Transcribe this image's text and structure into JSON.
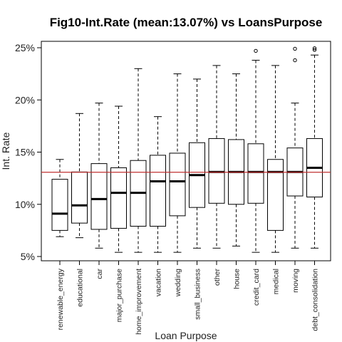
{
  "chart_data": {
    "type": "box",
    "title": "Fig10-Int.Rate (mean:13.07%) vs LoansPurpose",
    "xlabel": "Loan Purpose",
    "ylabel": "Int. Rate",
    "ylim": [
      5,
      25
    ],
    "y_ticks": [
      5,
      10,
      15,
      20,
      25
    ],
    "y_tick_labels": [
      "5%",
      "10%",
      "15%",
      "20%",
      "25%"
    ],
    "reference_line": {
      "value": 13.07,
      "color": "#c03030"
    },
    "categories": [
      "renewable_energy",
      "educational",
      "car",
      "major_purchase",
      "home_improvement",
      "vacation",
      "wedding",
      "small_business",
      "other",
      "house",
      "credit_card",
      "medical",
      "moving",
      "debt_consolidation"
    ],
    "boxes": [
      {
        "min": 6.9,
        "q1": 7.5,
        "median": 9.1,
        "q3": 12.4,
        "max": 14.3,
        "outliers": []
      },
      {
        "min": 6.8,
        "q1": 8.2,
        "median": 9.9,
        "q3": 13.1,
        "max": 18.7,
        "outliers": []
      },
      {
        "min": 5.8,
        "q1": 7.6,
        "median": 10.5,
        "q3": 13.9,
        "max": 19.7,
        "outliers": []
      },
      {
        "min": 5.4,
        "q1": 7.7,
        "median": 11.1,
        "q3": 13.5,
        "max": 19.4,
        "outliers": []
      },
      {
        "min": 5.4,
        "q1": 7.9,
        "median": 11.1,
        "q3": 14.2,
        "max": 23.0,
        "outliers": []
      },
      {
        "min": 5.4,
        "q1": 7.9,
        "median": 12.2,
        "q3": 14.7,
        "max": 18.4,
        "outliers": []
      },
      {
        "min": 5.4,
        "q1": 8.9,
        "median": 12.2,
        "q3": 14.9,
        "max": 22.5,
        "outliers": []
      },
      {
        "min": 5.8,
        "q1": 9.7,
        "median": 12.8,
        "q3": 15.9,
        "max": 22.0,
        "outliers": []
      },
      {
        "min": 5.8,
        "q1": 10.1,
        "median": 13.1,
        "q3": 16.3,
        "max": 23.3,
        "outliers": []
      },
      {
        "min": 6.0,
        "q1": 10.0,
        "median": 13.1,
        "q3": 16.2,
        "max": 22.5,
        "outliers": []
      },
      {
        "min": 5.4,
        "q1": 10.1,
        "median": 13.1,
        "q3": 15.8,
        "max": 23.8,
        "outliers": [
          24.7
        ]
      },
      {
        "min": 5.4,
        "q1": 7.5,
        "median": 13.1,
        "q3": 14.3,
        "max": 23.3,
        "outliers": []
      },
      {
        "min": 5.8,
        "q1": 10.8,
        "median": 13.1,
        "q3": 15.4,
        "max": 19.7,
        "outliers": [
          23.8,
          24.9
        ]
      },
      {
        "min": 5.8,
        "q1": 10.7,
        "median": 13.5,
        "q3": 16.3,
        "max": 24.3,
        "outliers": [
          24.8,
          24.95
        ]
      }
    ]
  }
}
